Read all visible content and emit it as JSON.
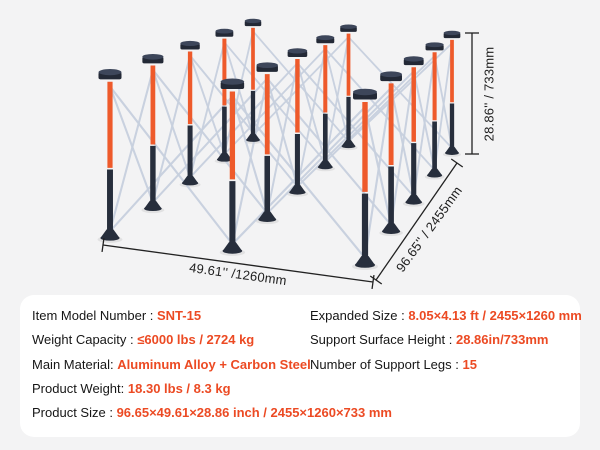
{
  "figure": {
    "description": "folding-work-support-stand-illustration",
    "dimension_labels": {
      "height": "28.86'' / 733mm",
      "width": "49.61'' /1260mm",
      "length": "96.65'' / 2455mm"
    }
  },
  "specs": {
    "left": [
      {
        "label": "Item Model Number :",
        "value": "SNT-15"
      },
      {
        "label": "Weight Capacity :",
        "value": "≤6000 lbs / 2724 kg"
      },
      {
        "label": "Main Material:",
        "value": "Aluminum Alloy + Carbon Steel"
      },
      {
        "label": "Product Weight:",
        "value": "18.30 lbs / 8.3 kg"
      },
      {
        "label": "Product Size :",
        "value": "96.65×49.61×28.86 inch / 2455×1260×733 mm"
      }
    ],
    "right": [
      {
        "label": "Expanded Size :",
        "value": "8.05×4.13 ft / 2455×1260 mm"
      },
      {
        "label": "Support Surface Height :",
        "value": "28.86in/733mm"
      },
      {
        "label": "Number of Support Legs :",
        "value": "15"
      }
    ]
  },
  "colors": {
    "accent": "#ec4a23",
    "leg_orange": "#ee5a2b",
    "leg_dark": "#272e3c",
    "cap_dark": "#232936",
    "cap_top": "#3d465a",
    "brace": "#c7d0de",
    "dim_line": "#222222",
    "panel_bg": "#ffffff",
    "page_bg": "#f3f3f4",
    "label_text": "#161616"
  }
}
